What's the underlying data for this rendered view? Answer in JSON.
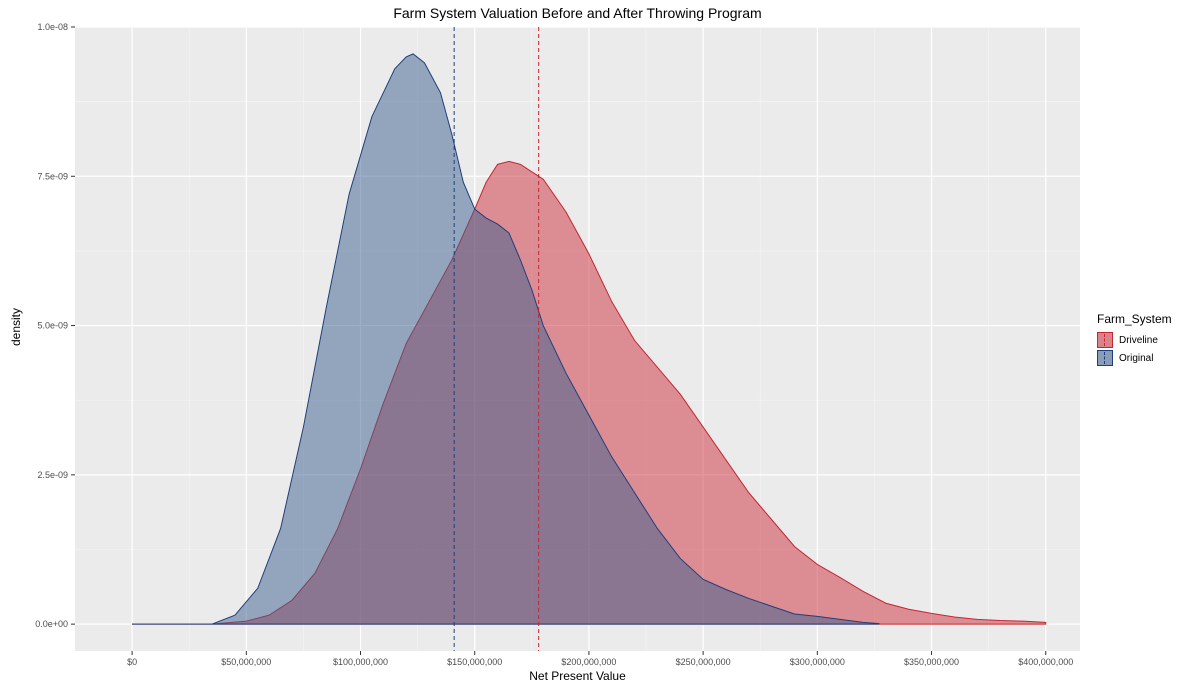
{
  "chart_data": {
    "type": "area",
    "title": "Farm System Valuation Before and After Throwing Program",
    "xlabel": "Net Present Value",
    "ylabel": "density",
    "xlim": [
      -25000000,
      415000000
    ],
    "ylim": [
      -4.5e-10,
      1e-08
    ],
    "x_ticks": [
      0,
      50000000,
      100000000,
      150000000,
      200000000,
      250000000,
      300000000,
      350000000,
      400000000
    ],
    "x_tick_labels": [
      "$0",
      "$50,000,000",
      "$100,000,000",
      "$150,000,000",
      "$200,000,000",
      "$250,000,000",
      "$300,000,000",
      "$350,000,000",
      "$400,000,000"
    ],
    "y_ticks": [
      0,
      2.5e-09,
      5e-09,
      7.5e-09,
      1e-08
    ],
    "y_tick_labels": [
      "0.0e+00",
      "2.5e-09",
      "5.0e-09",
      "7.5e-09",
      "1.0e-08"
    ],
    "grid": true,
    "legend": {
      "title": "Farm_System",
      "position": "right"
    },
    "series": [
      {
        "name": "Driveline",
        "color": "#c9252f",
        "fill": "#cc2f3c",
        "mean": 178000000,
        "x": [
          0,
          35000000,
          50000000,
          60000000,
          70000000,
          80000000,
          90000000,
          100000000,
          110000000,
          120000000,
          130000000,
          140000000,
          150000000,
          155000000,
          160000000,
          165000000,
          170000000,
          180000000,
          190000000,
          200000000,
          210000000,
          220000000,
          230000000,
          240000000,
          250000000,
          260000000,
          270000000,
          280000000,
          290000000,
          300000000,
          310000000,
          320000000,
          330000000,
          340000000,
          350000000,
          360000000,
          370000000,
          380000000,
          390000000,
          400000000
        ],
        "y": [
          0,
          0,
          5e-11,
          1.5e-10,
          4e-10,
          8.5e-10,
          1.6e-09,
          2.6e-09,
          3.7e-09,
          4.7e-09,
          5.4e-09,
          6.1e-09,
          6.95e-09,
          7.4e-09,
          7.7e-09,
          7.75e-09,
          7.7e-09,
          7.45e-09,
          6.9e-09,
          6.2e-09,
          5.4e-09,
          4.75e-09,
          4.3e-09,
          3.85e-09,
          3.3e-09,
          2.75e-09,
          2.2e-09,
          1.75e-09,
          1.3e-09,
          1e-09,
          7.8e-10,
          5.5e-10,
          3.5e-10,
          2.5e-10,
          1.8e-10,
          1.2e-10,
          8e-11,
          6e-11,
          5e-11,
          3e-11
        ]
      },
      {
        "name": "Original",
        "color": "#1f3f7a",
        "fill": "#3c5f8f",
        "mean": 141000000,
        "x": [
          0,
          35000000,
          45000000,
          55000000,
          65000000,
          75000000,
          85000000,
          95000000,
          105000000,
          115000000,
          120000000,
          123000000,
          128000000,
          135000000,
          140000000,
          145000000,
          150000000,
          155000000,
          160000000,
          165000000,
          170000000,
          175000000,
          180000000,
          190000000,
          200000000,
          210000000,
          220000000,
          230000000,
          240000000,
          250000000,
          260000000,
          270000000,
          280000000,
          290000000,
          300000000,
          310000000,
          320000000,
          327000000
        ],
        "y": [
          0,
          0,
          1.5e-10,
          6e-10,
          1.6e-09,
          3.3e-09,
          5.3e-09,
          7.2e-09,
          8.5e-09,
          9.3e-09,
          9.5e-09,
          9.55e-09,
          9.4e-09,
          8.9e-09,
          8.2e-09,
          7.4e-09,
          6.95e-09,
          6.8e-09,
          6.7e-09,
          6.55e-09,
          6.1e-09,
          5.6e-09,
          5e-09,
          4.2e-09,
          3.5e-09,
          2.8e-09,
          2.2e-09,
          1.6e-09,
          1.1e-09,
          7.5e-10,
          5.8e-10,
          4.3e-10,
          3e-10,
          1.7e-10,
          1.3e-10,
          8e-11,
          3e-11,
          1e-11
        ]
      }
    ]
  }
}
